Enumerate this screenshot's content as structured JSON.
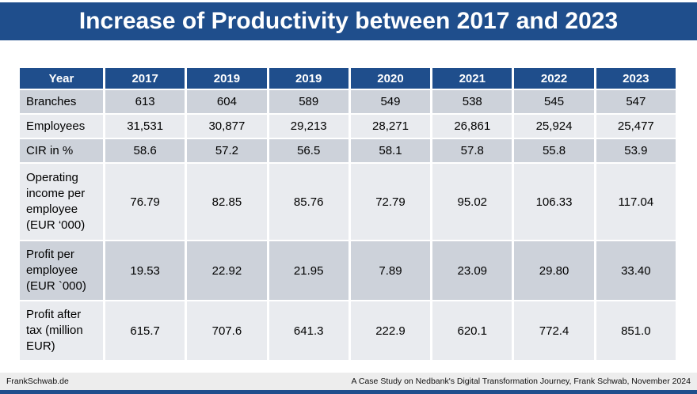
{
  "title": "Increase of Productivity between 2017 and 2023",
  "table": {
    "header": [
      "Year",
      "2017",
      "2019",
      "2019",
      "2020",
      "2021",
      "2022",
      "2023"
    ],
    "rows": [
      {
        "label": "Branches",
        "values": [
          "613",
          "604",
          "589",
          "549",
          "538",
          "545",
          "547"
        ]
      },
      {
        "label": "Employees",
        "values": [
          "31,531",
          "30,877",
          "29,213",
          "28,271",
          "26,861",
          "25,924",
          "25,477"
        ]
      },
      {
        "label": "CIR in %",
        "values": [
          "58.6",
          "57.2",
          "56.5",
          "58.1",
          "57.8",
          "55.8",
          "53.9"
        ]
      },
      {
        "label": "Operating income per employee (EUR ‘000)",
        "values": [
          "76.79",
          "82.85",
          "85.76",
          "72.79",
          "95.02",
          "106.33",
          "117.04"
        ]
      },
      {
        "label": "Profit per employee (EUR `000)",
        "values": [
          "19.53",
          "22.92",
          "21.95",
          "7.89",
          "23.09",
          "29.80",
          "33.40"
        ]
      },
      {
        "label": "Profit after tax (million EUR)",
        "values": [
          "615.7",
          "707.6",
          "641.3",
          "222.9",
          "620.1",
          "772.4",
          "851.0"
        ]
      }
    ]
  },
  "chart_data": {
    "type": "table",
    "title": "Increase of Productivity between 2017 and 2023",
    "columns": [
      "Year",
      "2017",
      "2019",
      "2019",
      "2020",
      "2021",
      "2022",
      "2023"
    ],
    "series": [
      {
        "name": "Branches",
        "values": [
          613,
          604,
          589,
          549,
          538,
          545,
          547
        ]
      },
      {
        "name": "Employees",
        "values": [
          31531,
          30877,
          29213,
          28271,
          26861,
          25924,
          25477
        ]
      },
      {
        "name": "CIR in %",
        "values": [
          58.6,
          57.2,
          56.5,
          58.1,
          57.8,
          55.8,
          53.9
        ]
      },
      {
        "name": "Operating income per employee (EUR '000)",
        "values": [
          76.79,
          82.85,
          85.76,
          72.79,
          95.02,
          106.33,
          117.04
        ]
      },
      {
        "name": "Profit per employee (EUR `000)",
        "values": [
          19.53,
          22.92,
          21.95,
          7.89,
          23.09,
          29.8,
          33.4
        ]
      },
      {
        "name": "Profit after tax (million EUR)",
        "values": [
          615.7,
          707.6,
          641.3,
          222.9,
          620.1,
          772.4,
          851.0
        ]
      }
    ]
  },
  "footer": {
    "left": "FrankSchwab.de",
    "right": "A Case Study on Nedbank's Digital Transformation Journey, Frank Schwab, November 2024"
  },
  "colors": {
    "banner_blue": "#1F4E8C",
    "header_blue": "#1F4E8C",
    "row_gray": "#CDD2DA",
    "row_light": "#E9EBEF",
    "footer_bg": "#EDEDED",
    "bottom_bar": "#1F4E8C"
  }
}
